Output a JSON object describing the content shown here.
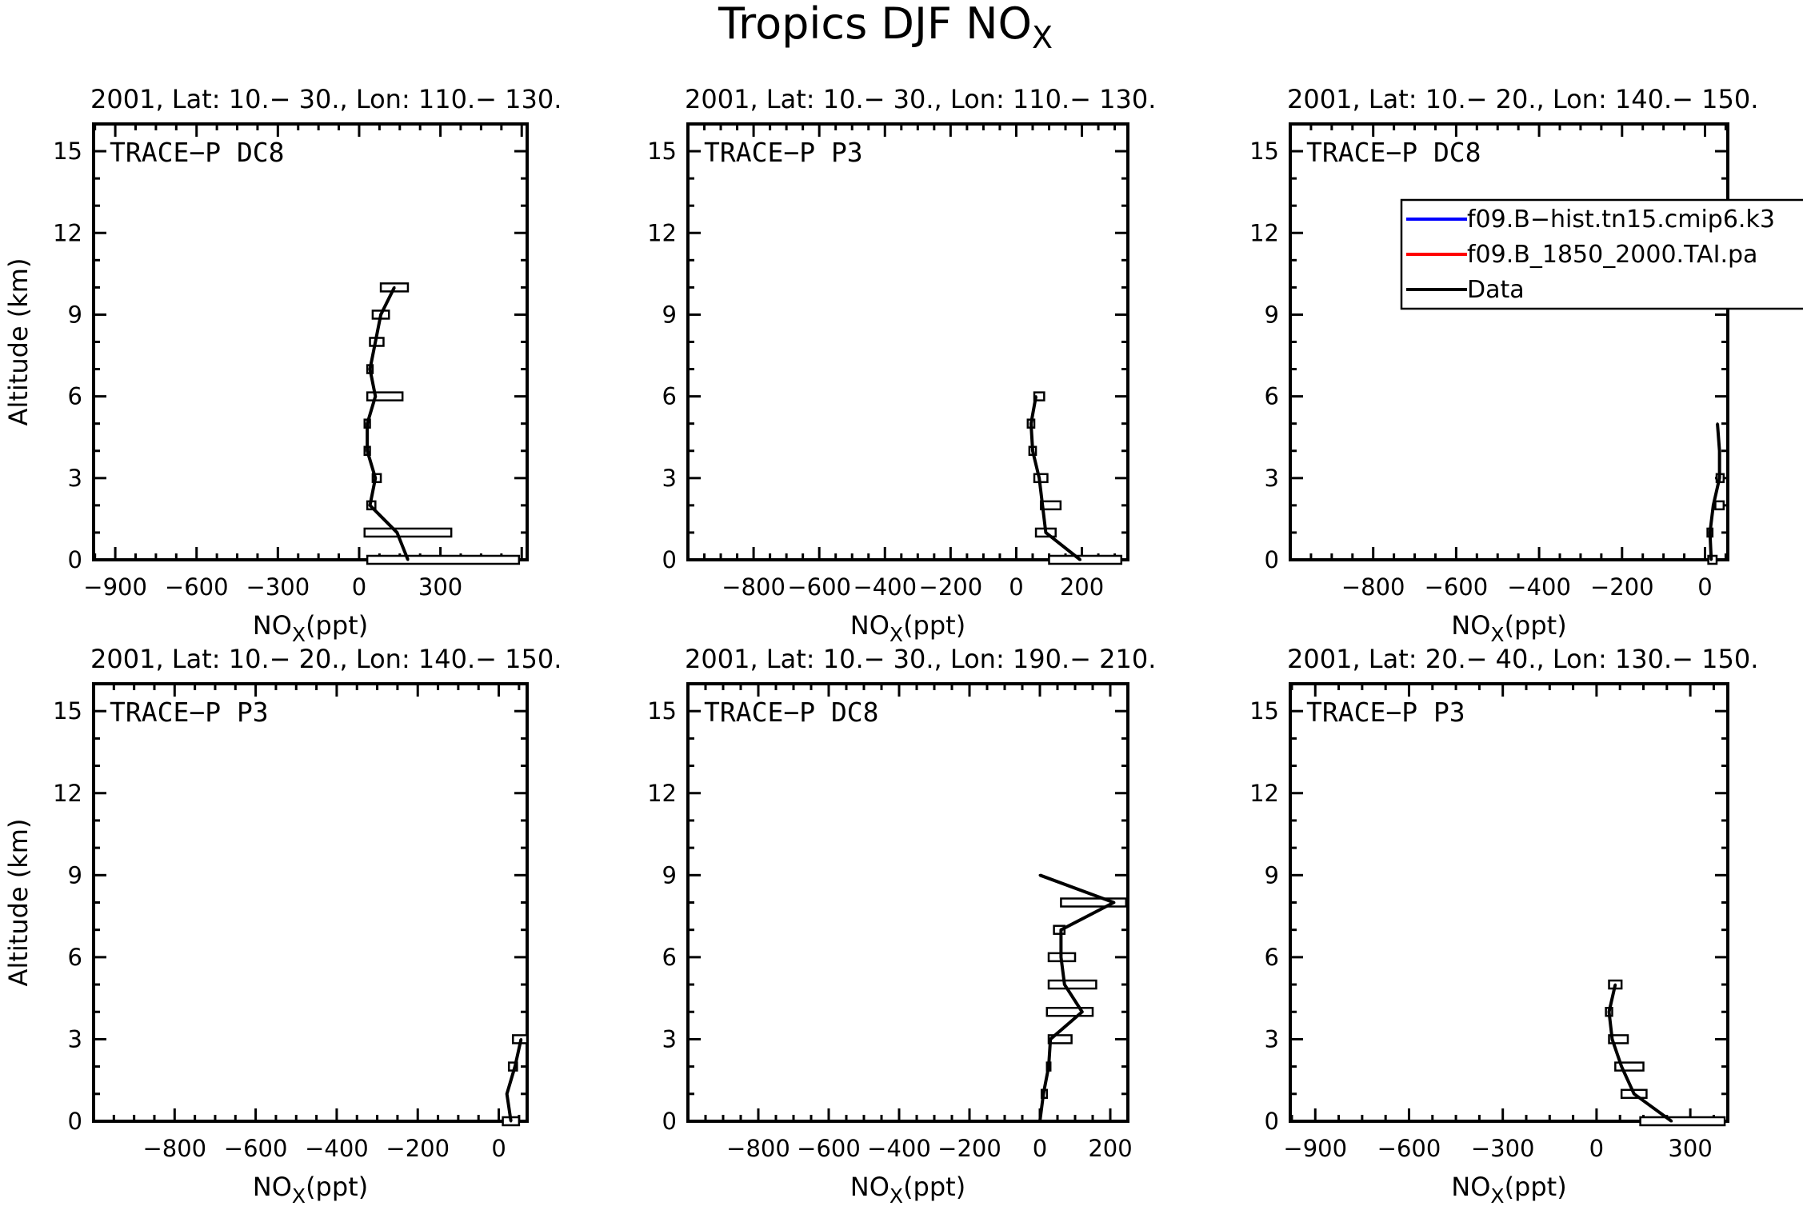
{
  "figure": {
    "title_main": "Tropics DJF NO",
    "title_sub": "X"
  },
  "legend": [
    {
      "label": "f09.B−hist.tn15.cmip6.k3",
      "color": "#0000ff"
    },
    {
      "label": "f09.B_1850_2000.TAI.pa",
      "color": "#ff0000"
    },
    {
      "label": "Data",
      "color": "#000000"
    }
  ],
  "colors": {
    "axes": "#000000",
    "data": "#000000",
    "box_fill": "#ffffff"
  },
  "chart_data": [
    {
      "type": "line",
      "header": "2001, Lat: 10.− 30., Lon: 110.− 130.",
      "campaign": "TRACE−P DC8",
      "xlabel": "NO",
      "xlabel_sub": "X",
      "xlabel_unit": "(ppt)",
      "ylabel": "Altitude (km)",
      "xlim": [
        -980,
        620
      ],
      "ylim": [
        0,
        16
      ],
      "xticks": [
        -900,
        -600,
        -300,
        0,
        300
      ],
      "xticklabels": [
        "−900",
        "−600",
        "−300",
        "0",
        "300"
      ],
      "yticks": [
        0,
        3,
        6,
        9,
        12,
        15
      ],
      "yticklabels": [
        "0",
        "3",
        "6",
        "9",
        "12",
        "15"
      ],
      "profile": [
        [
          180,
          0
        ],
        [
          140,
          1
        ],
        [
          40,
          2
        ],
        [
          60,
          3
        ],
        [
          30,
          4
        ],
        [
          30,
          5
        ],
        [
          60,
          6
        ],
        [
          40,
          7
        ],
        [
          60,
          8
        ],
        [
          80,
          9
        ],
        [
          130,
          10
        ]
      ],
      "boxes": [
        [
          30,
          590,
          0
        ],
        [
          20,
          340,
          1
        ],
        [
          30,
          60,
          2
        ],
        [
          50,
          80,
          3
        ],
        [
          20,
          40,
          4
        ],
        [
          20,
          40,
          5
        ],
        [
          30,
          160,
          6
        ],
        [
          30,
          50,
          7
        ],
        [
          40,
          90,
          8
        ],
        [
          50,
          110,
          9
        ],
        [
          80,
          180,
          10
        ]
      ]
    },
    {
      "type": "line",
      "header": "2001, Lat: 10.− 30., Lon: 110.− 130.",
      "campaign": "TRACE−P P3",
      "xlabel": "NO",
      "xlabel_sub": "X",
      "xlabel_unit": "(ppt)",
      "ylabel": "",
      "xlim": [
        -1000,
        340
      ],
      "ylim": [
        0,
        16
      ],
      "xticks": [
        -800,
        -600,
        -400,
        -200,
        0,
        200
      ],
      "xticklabels": [
        "−800",
        "−600",
        "−400",
        "−200",
        "0",
        "200"
      ],
      "yticks": [
        0,
        3,
        6,
        9,
        12,
        15
      ],
      "yticklabels": [
        "0",
        "3",
        "6",
        "9",
        "12",
        "15"
      ],
      "profile": [
        [
          195,
          0
        ],
        [
          90,
          1
        ],
        [
          80,
          2
        ],
        [
          70,
          3
        ],
        [
          50,
          4
        ],
        [
          45,
          5
        ],
        [
          60,
          6
        ]
      ],
      "boxes": [
        [
          100,
          320,
          0
        ],
        [
          60,
          120,
          1
        ],
        [
          75,
          135,
          2
        ],
        [
          55,
          95,
          3
        ],
        [
          40,
          60,
          4
        ],
        [
          35,
          55,
          5
        ],
        [
          55,
          85,
          6
        ]
      ]
    },
    {
      "type": "line",
      "header": "2001, Lat: 10.− 20., Lon: 140.− 150.",
      "campaign": "TRACE−P DC8",
      "xlabel": "NO",
      "xlabel_sub": "X",
      "xlabel_unit": "(ppt)",
      "ylabel": "",
      "xlim": [
        -1000,
        55
      ],
      "ylim": [
        0,
        16
      ],
      "xticks": [
        -800,
        -600,
        -400,
        -200,
        0
      ],
      "xticklabels": [
        "−800",
        "−600",
        "−400",
        "−200",
        "0"
      ],
      "yticks": [
        0,
        3,
        6,
        9,
        12,
        15
      ],
      "yticklabels": [
        "0",
        "3",
        "6",
        "9",
        "12",
        "15"
      ],
      "profile": [
        [
          15,
          0
        ],
        [
          12,
          1
        ],
        [
          20,
          2
        ],
        [
          35,
          3
        ],
        [
          35,
          4
        ],
        [
          30,
          5
        ]
      ],
      "boxes": [
        [
          8,
          28,
          0
        ],
        [
          6,
          18,
          1
        ],
        [
          25,
          45,
          2
        ],
        [
          28,
          45,
          3
        ]
      ]
    },
    {
      "type": "line",
      "header": "2001, Lat: 10.− 20., Lon: 140.− 150.",
      "campaign": "TRACE−P P3",
      "xlabel": "NO",
      "xlabel_sub": "X",
      "xlabel_unit": "(ppt)",
      "ylabel": "Altitude (km)",
      "xlim": [
        -1000,
        70
      ],
      "ylim": [
        0,
        16
      ],
      "xticks": [
        -800,
        -600,
        -400,
        -200,
        0
      ],
      "xticklabels": [
        "−800",
        "−600",
        "−400",
        "−200",
        "0"
      ],
      "yticks": [
        0,
        3,
        6,
        9,
        12,
        15
      ],
      "yticklabels": [
        "0",
        "3",
        "6",
        "9",
        "12",
        "15"
      ],
      "profile": [
        [
          30,
          0
        ],
        [
          20,
          1
        ],
        [
          40,
          2
        ],
        [
          55,
          3
        ]
      ],
      "boxes": [
        [
          10,
          50,
          0
        ],
        [
          25,
          45,
          2
        ],
        [
          35,
          70,
          3
        ]
      ]
    },
    {
      "type": "line",
      "header": "2001, Lat: 10.− 30., Lon: 190.− 210.",
      "campaign": "TRACE−P DC8",
      "xlabel": "NO",
      "xlabel_sub": "X",
      "xlabel_unit": "(ppt)",
      "ylabel": "",
      "xlim": [
        -1000,
        250
      ],
      "ylim": [
        0,
        16
      ],
      "xticks": [
        -800,
        -600,
        -400,
        -200,
        0,
        200
      ],
      "xticklabels": [
        "−800",
        "−600",
        "−400",
        "−200",
        "0",
        "200"
      ],
      "yticks": [
        0,
        3,
        6,
        9,
        12,
        15
      ],
      "yticklabels": [
        "0",
        "3",
        "6",
        "9",
        "12",
        "15"
      ],
      "profile": [
        [
          0,
          0
        ],
        [
          10,
          1
        ],
        [
          25,
          2
        ],
        [
          30,
          3
        ],
        [
          120,
          4
        ],
        [
          70,
          5
        ],
        [
          60,
          6
        ],
        [
          60,
          7
        ],
        [
          210,
          8
        ],
        [
          0,
          9
        ]
      ],
      "boxes": [
        [
          5,
          20,
          1
        ],
        [
          20,
          30,
          2
        ],
        [
          25,
          90,
          3
        ],
        [
          20,
          150,
          4
        ],
        [
          25,
          160,
          5
        ],
        [
          25,
          100,
          6
        ],
        [
          40,
          70,
          7
        ],
        [
          60,
          245,
          8
        ]
      ]
    },
    {
      "type": "line",
      "header": "2001, Lat: 20.− 40., Lon: 130.− 150.",
      "campaign": "TRACE−P P3",
      "xlabel": "NO",
      "xlabel_sub": "X",
      "xlabel_unit": "(ppt)",
      "ylabel": "",
      "xlim": [
        -980,
        420
      ],
      "ylim": [
        0,
        16
      ],
      "xticks": [
        -900,
        -600,
        -300,
        0,
        300
      ],
      "xticklabels": [
        "−900",
        "−600",
        "−300",
        "0",
        "300"
      ],
      "yticks": [
        0,
        3,
        6,
        9,
        12,
        15
      ],
      "yticklabels": [
        "0",
        "3",
        "6",
        "9",
        "12",
        "15"
      ],
      "profile": [
        [
          240,
          0
        ],
        [
          120,
          1
        ],
        [
          80,
          2
        ],
        [
          50,
          3
        ],
        [
          40,
          4
        ],
        [
          60,
          5
        ]
      ],
      "boxes": [
        [
          140,
          410,
          0
        ],
        [
          80,
          160,
          1
        ],
        [
          60,
          150,
          2
        ],
        [
          40,
          100,
          3
        ],
        [
          30,
          50,
          4
        ],
        [
          40,
          80,
          5
        ]
      ]
    }
  ]
}
